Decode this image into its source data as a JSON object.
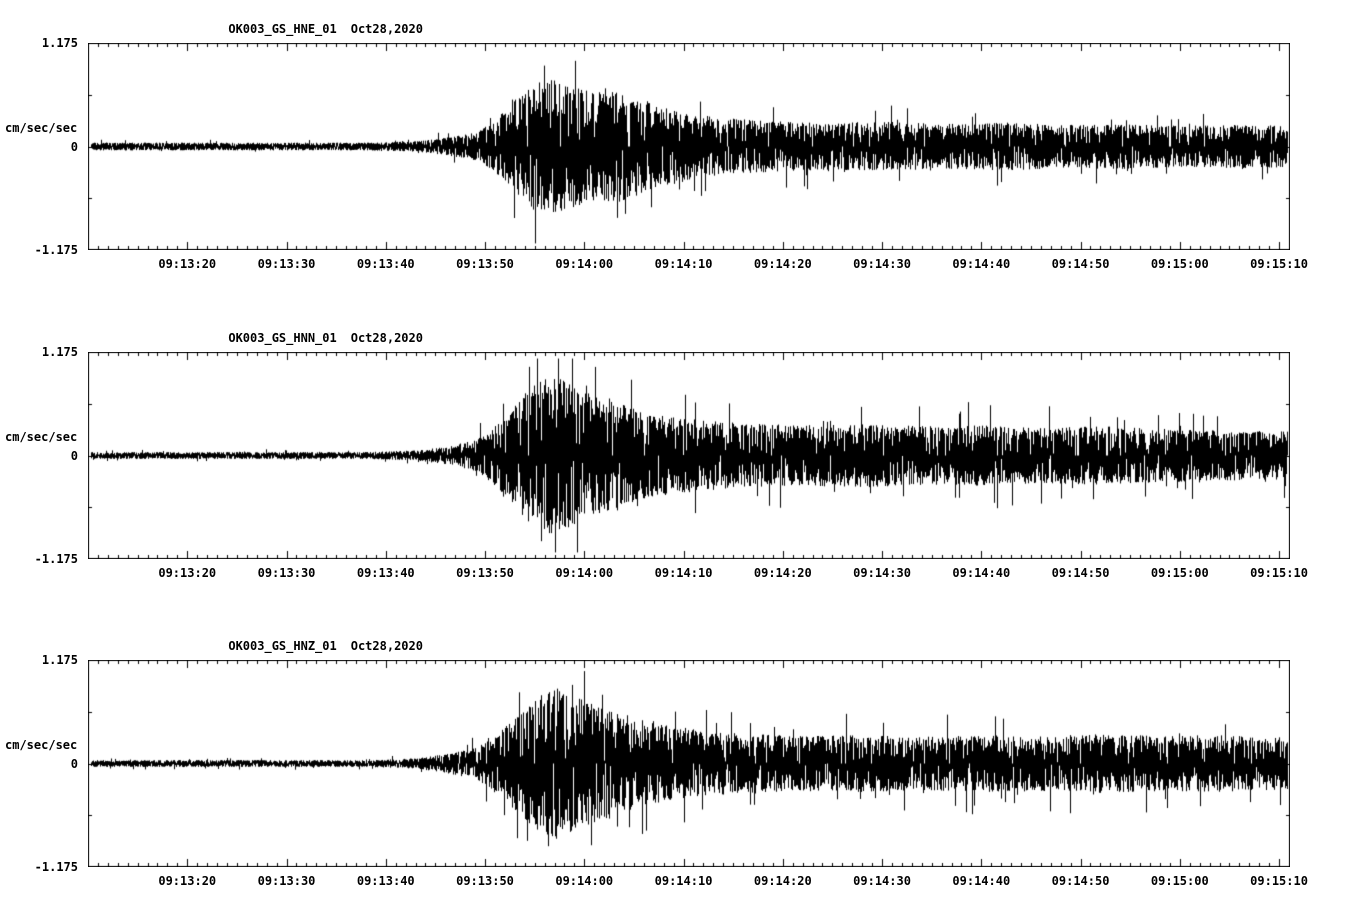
{
  "page": {
    "background": "#ffffff",
    "trace_color": "#000000"
  },
  "chart_data": [
    {
      "type": "line",
      "kind": "seismogram-trace",
      "title_station": "OK003_GS_HNE_01",
      "title_date": "Oct28,2020",
      "ylabel": "cm/sec/sec",
      "ylim": [
        -1.175,
        1.175
      ],
      "ytick_labels": [
        "1.175",
        "0",
        "-1.175"
      ],
      "x_start_time": "09:13:10",
      "x_span_seconds": 121,
      "x_tick_seconds": [
        10,
        20,
        30,
        40,
        50,
        60,
        70,
        80,
        90,
        100,
        110,
        120
      ],
      "x_ticks": [
        "09:13:20",
        "09:13:30",
        "09:13:40",
        "09:13:50",
        "09:14:00",
        "09:14:10",
        "09:14:20",
        "09:14:30",
        "09:14:40",
        "09:14:50",
        "09:15:00",
        "09:15:10"
      ],
      "seed": 1101,
      "envelope": [
        [
          0,
          0.045
        ],
        [
          28,
          0.045
        ],
        [
          33,
          0.06
        ],
        [
          36,
          0.1
        ],
        [
          39,
          0.16
        ],
        [
          41,
          0.3
        ],
        [
          43,
          0.55
        ],
        [
          45,
          0.75
        ],
        [
          47,
          0.78
        ],
        [
          49,
          0.7
        ],
        [
          51,
          0.62
        ],
        [
          53,
          0.66
        ],
        [
          55,
          0.58
        ],
        [
          58,
          0.46
        ],
        [
          61,
          0.38
        ],
        [
          64,
          0.33
        ],
        [
          68,
          0.3
        ],
        [
          74,
          0.27
        ],
        [
          80,
          0.29
        ],
        [
          86,
          0.26
        ],
        [
          92,
          0.28
        ],
        [
          98,
          0.25
        ],
        [
          104,
          0.26
        ],
        [
          110,
          0.24
        ],
        [
          116,
          0.25
        ],
        [
          121,
          0.24
        ]
      ]
    },
    {
      "type": "line",
      "kind": "seismogram-trace",
      "title_station": "OK003_GS_HNN_01",
      "title_date": "Oct28,2020",
      "ylabel": "cm/sec/sec",
      "ylim": [
        -1.175,
        1.175
      ],
      "ytick_labels": [
        "1.175",
        "0",
        "-1.175"
      ],
      "x_start_time": "09:13:10",
      "x_span_seconds": 121,
      "x_tick_seconds": [
        10,
        20,
        30,
        40,
        50,
        60,
        70,
        80,
        90,
        100,
        110,
        120
      ],
      "x_ticks": [
        "09:13:20",
        "09:13:30",
        "09:13:40",
        "09:13:50",
        "09:14:00",
        "09:14:10",
        "09:14:20",
        "09:14:30",
        "09:14:40",
        "09:14:50",
        "09:15:00",
        "09:15:10"
      ],
      "seed": 1102,
      "envelope": [
        [
          0,
          0.04
        ],
        [
          28,
          0.04
        ],
        [
          33,
          0.06
        ],
        [
          36,
          0.1
        ],
        [
          39,
          0.18
        ],
        [
          41,
          0.35
        ],
        [
          43,
          0.6
        ],
        [
          45,
          0.85
        ],
        [
          47,
          0.92
        ],
        [
          49,
          0.8
        ],
        [
          51,
          0.7
        ],
        [
          53,
          0.62
        ],
        [
          56,
          0.5
        ],
        [
          59,
          0.44
        ],
        [
          63,
          0.4
        ],
        [
          67,
          0.37
        ],
        [
          72,
          0.35
        ],
        [
          78,
          0.37
        ],
        [
          84,
          0.34
        ],
        [
          90,
          0.35
        ],
        [
          96,
          0.32
        ],
        [
          102,
          0.34
        ],
        [
          108,
          0.31
        ],
        [
          114,
          0.29
        ],
        [
          121,
          0.28
        ]
      ]
    },
    {
      "type": "line",
      "kind": "seismogram-trace",
      "title_station": "OK003_GS_HNZ_01",
      "title_date": "Oct28,2020",
      "ylabel": "cm/sec/sec",
      "ylim": [
        -1.175,
        1.175
      ],
      "ytick_labels": [
        "1.175",
        "0",
        "-1.175"
      ],
      "x_start_time": "09:13:10",
      "x_span_seconds": 121,
      "x_tick_seconds": [
        10,
        20,
        30,
        40,
        50,
        60,
        70,
        80,
        90,
        100,
        110,
        120
      ],
      "x_ticks": [
        "09:13:20",
        "09:13:30",
        "09:13:40",
        "09:13:50",
        "09:14:00",
        "09:14:10",
        "09:14:20",
        "09:14:30",
        "09:14:40",
        "09:14:50",
        "09:15:00",
        "09:15:10"
      ],
      "seed": 1103,
      "envelope": [
        [
          0,
          0.04
        ],
        [
          28,
          0.04
        ],
        [
          33,
          0.06
        ],
        [
          36,
          0.11
        ],
        [
          39,
          0.18
        ],
        [
          41,
          0.32
        ],
        [
          43,
          0.55
        ],
        [
          45,
          0.75
        ],
        [
          47,
          0.88
        ],
        [
          49,
          0.78
        ],
        [
          51,
          0.68
        ],
        [
          53,
          0.6
        ],
        [
          56,
          0.5
        ],
        [
          59,
          0.43
        ],
        [
          63,
          0.37
        ],
        [
          67,
          0.34
        ],
        [
          72,
          0.32
        ],
        [
          78,
          0.33
        ],
        [
          84,
          0.31
        ],
        [
          90,
          0.33
        ],
        [
          96,
          0.32
        ],
        [
          102,
          0.34
        ],
        [
          108,
          0.32
        ],
        [
          114,
          0.33
        ],
        [
          121,
          0.3
        ]
      ]
    }
  ]
}
